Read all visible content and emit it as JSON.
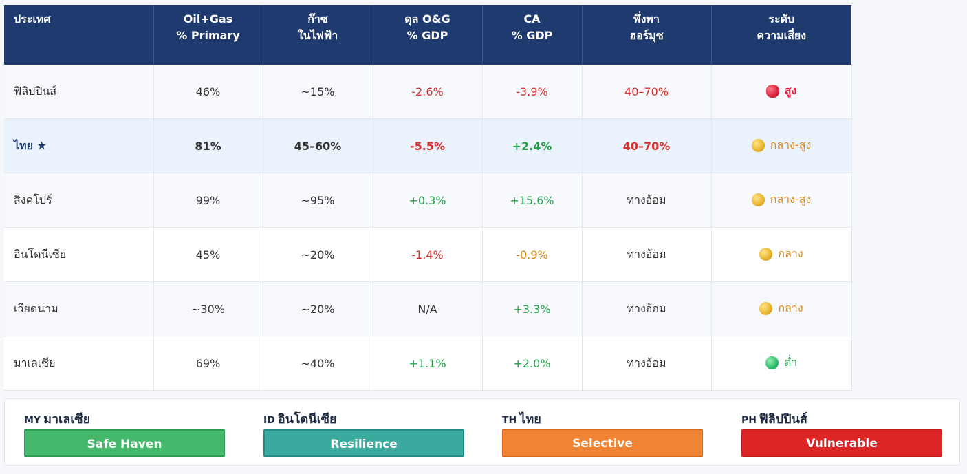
{
  "table": {
    "headers": [
      {
        "line1": "ประเทศ",
        "line2": ""
      },
      {
        "line1": "Oil+Gas",
        "line2": "% Primary"
      },
      {
        "line1": "ก๊าซ",
        "line2": "ในไฟฟ้า"
      },
      {
        "line1": "ดุล O&G",
        "line2": "% GDP"
      },
      {
        "line1": "CA",
        "line2": "% GDP"
      },
      {
        "line1": "พึ่งพา",
        "line2": "ฮอร์มุซ"
      },
      {
        "line1": "ระดับ",
        "line2": "ความเสี่ยง"
      }
    ],
    "rows": [
      {
        "country": "ฟิลิปปินส์",
        "oil_gas": "46%",
        "gas_power": "~15%",
        "og_balance": "-2.6%",
        "ca": "-3.9%",
        "hormuz": "40–70%",
        "risk": "สูง",
        "risk_color": "red"
      },
      {
        "country": "ไทย ★",
        "oil_gas": "81%",
        "gas_power": "45–60%",
        "og_balance": "-5.5%",
        "ca": "+2.4%",
        "hormuz": "40–70%",
        "risk": "กลาง-สูง",
        "risk_color": "yellow"
      },
      {
        "country": "สิงคโปร์",
        "oil_gas": "99%",
        "gas_power": "~95%",
        "og_balance": "+0.3%",
        "ca": "+15.6%",
        "hormuz": "ทางอ้อม",
        "risk": "กลาง-สูง",
        "risk_color": "yellow"
      },
      {
        "country": "อินโดนีเซีย",
        "oil_gas": "45%",
        "gas_power": "~20%",
        "og_balance": "-1.4%",
        "ca": "-0.9%",
        "hormuz": "ทางอ้อม",
        "risk": "กลาง",
        "risk_color": "yellow"
      },
      {
        "country": "เวียดนาม",
        "oil_gas": "~30%",
        "gas_power": "~20%",
        "og_balance": "N/A",
        "ca": "+3.3%",
        "hormuz": "ทางอ้อม",
        "risk": "กลาง",
        "risk_color": "yellow"
      },
      {
        "country": "มาเลเซีย",
        "oil_gas": "69%",
        "gas_power": "~40%",
        "og_balance": "+1.1%",
        "ca": "+2.0%",
        "hormuz": "ทางอ้อม",
        "risk": "ต่ำ",
        "risk_color": "green"
      }
    ]
  },
  "legend": [
    {
      "code": "MY",
      "name": "มาเลเซีย",
      "label": "Safe Haven",
      "color": "#43b86a"
    },
    {
      "code": "ID",
      "name": "อินโดนีเซีย",
      "label": "Resilience",
      "color": "#3aa99e"
    },
    {
      "code": "TH",
      "name": "ไทย",
      "label": "Selective",
      "color": "#ef8434"
    },
    {
      "code": "PH",
      "name": "ฟิลิปปินส์",
      "label": "Vulnerable",
      "color": "#dc2626"
    }
  ]
}
